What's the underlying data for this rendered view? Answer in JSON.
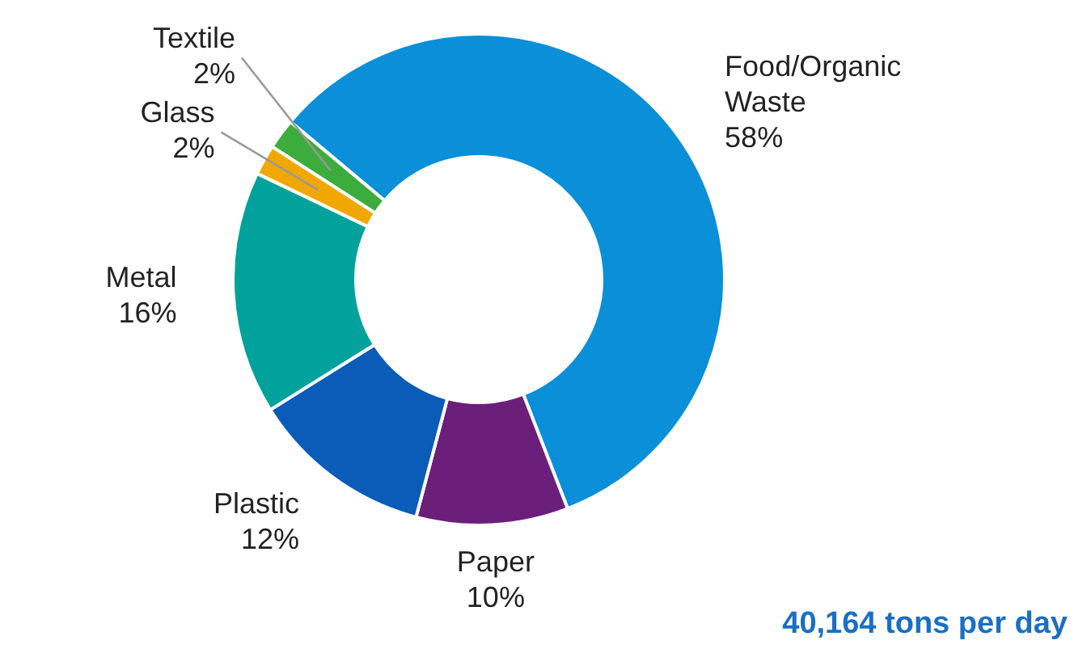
{
  "chart_data": {
    "type": "donut",
    "categories": [
      "Food/Organic Waste",
      "Paper",
      "Plastic",
      "Metal",
      "Glass",
      "Textile"
    ],
    "values": [
      58,
      10,
      12,
      16,
      2,
      2
    ],
    "colors": [
      "#0a8fd8",
      "#6b1f7a",
      "#0a5cb8",
      "#00a29b",
      "#f0a800",
      "#3cac3c"
    ],
    "value_labels": [
      "58%",
      "10%",
      "12%",
      "16%",
      "2%",
      "2%"
    ],
    "legend": false,
    "annotations": [
      "40,164 tons per day"
    ]
  }
}
